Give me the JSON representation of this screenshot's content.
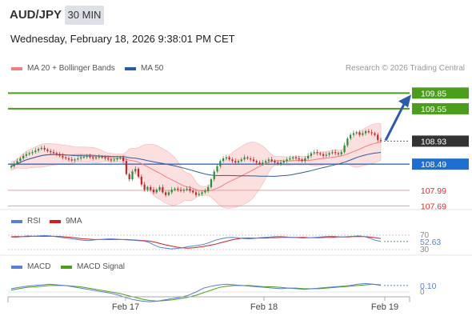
{
  "header": {
    "pair": "AUD/JPY",
    "timeframe": "30 MIN",
    "timestamp": "Wednesday, February 18, 2026 9:38:01 PM CET",
    "credit": "Research © 2026 Trading Central"
  },
  "legends": {
    "main": [
      "MA 20 + Bollinger Bands",
      "MA 50"
    ],
    "rsi": [
      "RSI",
      "9MA"
    ],
    "macd": [
      "MACD",
      "MACD Signal"
    ]
  },
  "colors": {
    "ma20": "#f08080",
    "ma50": "#2c5aa0",
    "bands": "#fcdcdc",
    "green": "#4a9e1c",
    "blue": "#1f6fd0",
    "red": "#d03030",
    "up": "#2c8a3a",
    "down": "#c0282c",
    "rsi": "#5b7fd6",
    "rsi_ma": "#d02020",
    "macd": "#5b7fd6",
    "macd_signal": "#4a9e1c"
  },
  "chart_data": [
    {
      "type": "candlestick",
      "name": "price",
      "ylim": [
        107.62,
        110.1
      ],
      "x_ticks": [
        "Feb 17",
        "Feb 18",
        "Feb 19"
      ],
      "current_price": 108.93,
      "levels": [
        {
          "value": 109.85,
          "label": "109.85",
          "kind": "resistance",
          "color": "#4a9e1c"
        },
        {
          "value": 109.55,
          "label": "109.55",
          "kind": "resistance",
          "color": "#4a9e1c"
        },
        {
          "value": 108.93,
          "label": "108.93",
          "kind": "last",
          "color": "#333333"
        },
        {
          "value": 108.49,
          "label": "108.49",
          "kind": "pivot",
          "color": "#1f6fd0"
        },
        {
          "value": 107.99,
          "label": "107.99",
          "kind": "support",
          "color": "#d03030"
        },
        {
          "value": 107.69,
          "label": "107.69",
          "kind": "support",
          "color": "#d03030"
        }
      ],
      "forecast_arrow": {
        "from": 108.93,
        "to": 109.85
      },
      "closes": [
        108.45,
        108.5,
        108.55,
        108.6,
        108.65,
        108.68,
        108.7,
        108.72,
        108.75,
        108.78,
        108.8,
        108.77,
        108.74,
        108.72,
        108.7,
        108.68,
        108.65,
        108.62,
        108.6,
        108.58,
        108.56,
        108.58,
        108.6,
        108.62,
        108.63,
        108.64,
        108.62,
        108.6,
        108.62,
        108.63,
        108.62,
        108.6,
        108.58,
        108.56,
        108.58,
        108.6,
        108.62,
        108.55,
        108.3,
        108.2,
        108.35,
        108.4,
        108.25,
        108.1,
        108.0,
        108.05,
        108.0,
        107.95,
        108.0,
        108.05,
        107.95,
        107.9,
        107.95,
        108.0,
        108.02,
        108.0,
        107.98,
        108.0,
        108.02,
        107.98,
        107.95,
        107.9,
        107.92,
        107.95,
        107.98,
        108.05,
        108.2,
        108.35,
        108.45,
        108.55,
        108.6,
        108.62,
        108.58,
        108.55,
        108.52,
        108.55,
        108.58,
        108.62,
        108.6,
        108.58,
        108.55,
        108.52,
        108.5,
        108.52,
        108.55,
        108.58,
        108.55,
        108.52,
        108.5,
        108.52,
        108.55,
        108.58,
        108.6,
        108.62,
        108.6,
        108.58,
        108.55,
        108.6,
        108.65,
        108.7,
        108.72,
        108.7,
        108.68,
        108.65,
        108.67,
        108.7,
        108.72,
        108.7,
        108.68,
        108.72,
        108.85,
        108.98,
        109.05,
        109.08,
        109.1,
        109.05,
        109.08,
        109.12,
        109.1,
        109.08,
        109.05,
        108.95,
        108.93
      ]
    },
    {
      "type": "line",
      "name": "RSI",
      "ylim": [
        30,
        70
      ],
      "ticks": [
        70,
        30
      ],
      "value": 52.63,
      "series": [
        {
          "name": "RSI",
          "values": [
            66,
            67,
            66,
            68,
            67,
            68,
            69,
            68,
            66,
            64,
            62,
            60,
            58,
            56,
            55,
            57,
            58,
            59,
            60,
            59,
            58,
            57,
            56,
            55,
            54,
            50,
            42,
            36,
            34,
            32,
            33,
            35,
            38,
            40,
            42,
            45,
            50,
            56,
            60,
            63,
            64,
            63,
            61,
            60,
            61,
            63,
            64,
            65,
            66,
            66,
            65,
            64,
            63,
            62,
            63,
            64,
            65,
            66,
            67,
            66,
            65,
            66,
            67,
            68,
            66,
            62,
            56,
            52.63
          ]
        },
        {
          "name": "9MA",
          "values": [
            65,
            65,
            66,
            66,
            67,
            67,
            67,
            67,
            67,
            66,
            65,
            64,
            62,
            60,
            59,
            58,
            58,
            58,
            58,
            58,
            58,
            58,
            57,
            56,
            55,
            54,
            51,
            47,
            43,
            40,
            37,
            35,
            34,
            35,
            37,
            39,
            42,
            45,
            49,
            53,
            57,
            60,
            62,
            62,
            62,
            62,
            62,
            63,
            63,
            64,
            64,
            64,
            64,
            64,
            63,
            63,
            63,
            64,
            64,
            65,
            65,
            65,
            66,
            66,
            66,
            65,
            63,
            61
          ]
        }
      ]
    },
    {
      "type": "line",
      "name": "MACD",
      "zero": 0,
      "value": 0.1,
      "series": [
        {
          "name": "MACD",
          "values": [
            0.05,
            0.07,
            0.09,
            0.1,
            0.11,
            0.12,
            0.11,
            0.1,
            0.08,
            0.06,
            0.04,
            0.02,
            0.0,
            -0.02,
            -0.05,
            -0.09,
            -0.12,
            -0.14,
            -0.15,
            -0.14,
            -0.12,
            -0.1,
            -0.08,
            -0.05,
            0.0,
            0.06,
            0.09,
            0.11,
            0.12,
            0.11,
            0.1,
            0.09,
            0.08,
            0.07,
            0.06,
            0.05,
            0.06,
            0.05,
            0.04,
            0.05,
            0.06,
            0.07,
            0.08,
            0.09,
            0.1,
            0.12,
            0.13,
            0.12,
            0.1
          ]
        },
        {
          "name": "MACD Signal",
          "values": [
            0.03,
            0.05,
            0.07,
            0.08,
            0.09,
            0.1,
            0.1,
            0.1,
            0.09,
            0.08,
            0.06,
            0.04,
            0.02,
            0.0,
            -0.02,
            -0.05,
            -0.08,
            -0.11,
            -0.13,
            -0.14,
            -0.13,
            -0.12,
            -0.1,
            -0.08,
            -0.05,
            -0.01,
            0.03,
            0.07,
            0.09,
            0.1,
            0.1,
            0.1,
            0.09,
            0.08,
            0.08,
            0.07,
            0.06,
            0.06,
            0.05,
            0.05,
            0.05,
            0.06,
            0.07,
            0.08,
            0.09,
            0.1,
            0.11,
            0.12,
            0.11
          ]
        }
      ]
    }
  ]
}
